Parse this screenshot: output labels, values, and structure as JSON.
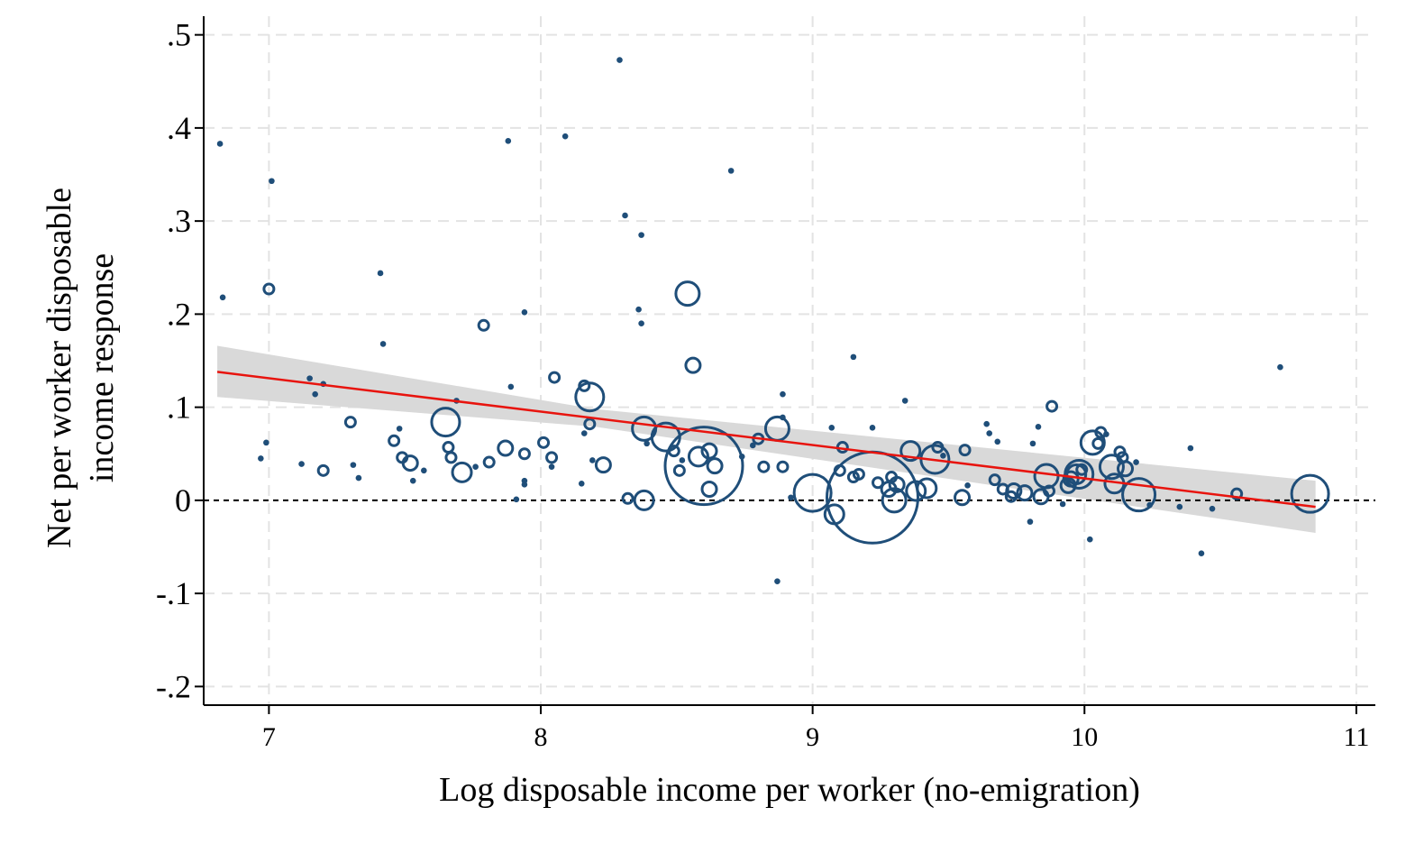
{
  "chart_data": {
    "type": "scatter",
    "title": "",
    "xlabel": "Log disposable income per worker (no-emigration)",
    "ylabel": [
      "Net per worker disposable",
      "income response"
    ],
    "xlim": [
      6.76,
      11.07
    ],
    "ylim": [
      -0.22,
      0.52
    ],
    "xticks": [
      7,
      8,
      9,
      10,
      11
    ],
    "xtick_labels": [
      "7",
      "8",
      "9",
      "10",
      "11"
    ],
    "yticks": [
      -0.2,
      -0.1,
      0,
      0.1,
      0.2,
      0.3,
      0.4,
      0.5
    ],
    "ytick_labels": [
      "-.2",
      "-.1",
      "0",
      ".1",
      ".2",
      ".3",
      ".4",
      ".5"
    ],
    "grid": true,
    "zero_reference_line": 0,
    "fit_line": {
      "x": [
        6.81,
        10.85
      ],
      "y": [
        0.138,
        -0.007
      ],
      "color": "#e8140e"
    },
    "confidence_band": {
      "x": [
        6.81,
        8.2,
        10.85
      ],
      "lower": [
        0.111,
        0.079,
        -0.035
      ],
      "upper": [
        0.166,
        0.098,
        0.021
      ]
    },
    "marker_color": "#1f4e79",
    "points": [
      [
        6.82,
        0.383,
        1
      ],
      [
        6.83,
        0.218,
        1
      ],
      [
        7.01,
        0.343,
        1
      ],
      [
        7.0,
        0.227,
        2
      ],
      [
        6.97,
        0.045,
        1
      ],
      [
        6.99,
        0.062,
        1
      ],
      [
        7.12,
        0.039,
        1
      ],
      [
        7.15,
        0.131,
        1
      ],
      [
        7.17,
        0.114,
        1
      ],
      [
        7.2,
        0.125,
        1
      ],
      [
        7.2,
        0.032,
        2
      ],
      [
        7.3,
        0.084,
        2
      ],
      [
        7.31,
        0.038,
        1
      ],
      [
        7.33,
        0.024,
        1
      ],
      [
        7.41,
        0.244,
        1
      ],
      [
        7.42,
        0.168,
        1
      ],
      [
        7.46,
        0.064,
        2
      ],
      [
        7.48,
        0.077,
        1
      ],
      [
        7.49,
        0.046,
        2
      ],
      [
        7.52,
        0.04,
        3
      ],
      [
        7.53,
        0.021,
        1
      ],
      [
        7.57,
        0.032,
        1
      ],
      [
        7.65,
        0.084,
        6
      ],
      [
        7.66,
        0.057,
        2
      ],
      [
        7.67,
        0.046,
        2
      ],
      [
        7.69,
        0.107,
        1
      ],
      [
        7.71,
        0.03,
        4
      ],
      [
        7.76,
        0.036,
        1
      ],
      [
        7.79,
        0.188,
        2
      ],
      [
        7.81,
        0.041,
        2
      ],
      [
        7.87,
        0.056,
        3
      ],
      [
        7.88,
        0.386,
        1
      ],
      [
        7.89,
        0.122,
        1
      ],
      [
        7.91,
        0.001,
        1
      ],
      [
        7.94,
        0.202,
        1
      ],
      [
        7.94,
        0.05,
        2
      ],
      [
        7.94,
        0.021,
        1
      ],
      [
        7.94,
        0.017,
        1
      ],
      [
        8.01,
        0.062,
        2
      ],
      [
        8.04,
        0.046,
        2
      ],
      [
        8.05,
        0.132,
        2
      ],
      [
        8.04,
        0.036,
        1
      ],
      [
        8.09,
        0.391,
        1
      ],
      [
        8.16,
        0.123,
        2
      ],
      [
        8.16,
        0.072,
        1
      ],
      [
        8.18,
        0.111,
        6
      ],
      [
        8.15,
        0.018,
        1
      ],
      [
        8.18,
        0.082,
        2
      ],
      [
        8.19,
        0.043,
        1
      ],
      [
        8.23,
        0.038,
        3
      ],
      [
        8.29,
        0.473,
        1
      ],
      [
        8.31,
        0.306,
        1
      ],
      [
        8.32,
        0.002,
        2
      ],
      [
        8.37,
        0.285,
        1
      ],
      [
        8.36,
        0.205,
        1
      ],
      [
        8.37,
        0.19,
        1
      ],
      [
        8.38,
        0.077,
        5
      ],
      [
        8.38,
        0.0,
        4
      ],
      [
        8.39,
        0.061,
        1
      ],
      [
        8.46,
        0.068,
        6
      ],
      [
        8.49,
        0.053,
        2
      ],
      [
        8.51,
        0.032,
        2
      ],
      [
        8.52,
        0.043,
        1
      ],
      [
        8.54,
        0.222,
        5
      ],
      [
        8.56,
        0.145,
        3
      ],
      [
        8.58,
        0.047,
        4
      ],
      [
        8.6,
        0.037,
        17
      ],
      [
        8.62,
        0.053,
        3
      ],
      [
        8.62,
        0.012,
        3
      ],
      [
        8.64,
        0.037,
        3
      ],
      [
        8.7,
        0.354,
        1
      ],
      [
        8.74,
        0.047,
        1
      ],
      [
        8.78,
        0.059,
        1
      ],
      [
        8.8,
        0.066,
        2
      ],
      [
        8.82,
        0.036,
        2
      ],
      [
        8.87,
        0.077,
        5
      ],
      [
        8.89,
        0.114,
        1
      ],
      [
        8.89,
        0.089,
        1
      ],
      [
        8.89,
        0.036,
        2
      ],
      [
        8.92,
        0.003,
        1
      ],
      [
        8.87,
        -0.087,
        1
      ],
      [
        9.0,
        0.008,
        8
      ],
      [
        9.07,
        0.078,
        1
      ],
      [
        9.08,
        -0.015,
        4
      ],
      [
        9.1,
        0.032,
        2
      ],
      [
        9.11,
        0.057,
        2
      ],
      [
        9.15,
        0.154,
        1
      ],
      [
        9.15,
        0.025,
        2
      ],
      [
        9.17,
        0.028,
        2
      ],
      [
        9.22,
        0.003,
        20
      ],
      [
        9.22,
        0.078,
        1
      ],
      [
        9.24,
        0.019,
        2
      ],
      [
        9.28,
        0.012,
        3
      ],
      [
        9.29,
        0.025,
        2
      ],
      [
        9.3,
        0.0,
        5
      ],
      [
        9.31,
        0.017,
        3
      ],
      [
        9.34,
        0.107,
        1
      ],
      [
        9.36,
        0.053,
        4
      ],
      [
        9.38,
        0.01,
        4
      ],
      [
        9.42,
        0.013,
        4
      ],
      [
        9.45,
        0.044,
        6
      ],
      [
        9.46,
        0.057,
        2
      ],
      [
        9.48,
        0.048,
        1
      ],
      [
        9.55,
        0.003,
        3
      ],
      [
        9.56,
        0.054,
        2
      ],
      [
        9.57,
        0.016,
        1
      ],
      [
        9.64,
        0.082,
        1
      ],
      [
        9.65,
        0.072,
        1
      ],
      [
        9.67,
        0.022,
        2
      ],
      [
        9.68,
        0.063,
        1
      ],
      [
        9.7,
        0.012,
        2
      ],
      [
        9.73,
        0.004,
        2
      ],
      [
        9.74,
        0.01,
        3
      ],
      [
        9.78,
        0.008,
        3
      ],
      [
        9.8,
        -0.023,
        1
      ],
      [
        9.81,
        0.061,
        1
      ],
      [
        9.83,
        0.079,
        1
      ],
      [
        9.84,
        0.004,
        3
      ],
      [
        9.86,
        0.026,
        5
      ],
      [
        9.87,
        0.01,
        2
      ],
      [
        9.88,
        0.101,
        2
      ],
      [
        9.92,
        -0.004,
        1
      ],
      [
        9.94,
        0.016,
        3
      ],
      [
        9.95,
        0.023,
        3
      ],
      [
        9.97,
        0.028,
        4
      ],
      [
        9.98,
        0.028,
        6
      ],
      [
        9.99,
        0.033,
        2
      ],
      [
        10.02,
        -0.042,
        1
      ],
      [
        10.03,
        0.062,
        5
      ],
      [
        10.05,
        0.061,
        2
      ],
      [
        10.06,
        0.073,
        2
      ],
      [
        10.08,
        0.071,
        1
      ],
      [
        10.1,
        0.036,
        5
      ],
      [
        10.11,
        0.018,
        4
      ],
      [
        10.13,
        0.052,
        2
      ],
      [
        10.14,
        0.046,
        2
      ],
      [
        10.15,
        0.034,
        3
      ],
      [
        10.19,
        0.041,
        1
      ],
      [
        10.2,
        0.006,
        7
      ],
      [
        10.24,
        -0.005,
        1
      ],
      [
        10.35,
        -0.007,
        1
      ],
      [
        10.39,
        0.056,
        1
      ],
      [
        10.43,
        -0.057,
        1
      ],
      [
        10.47,
        -0.009,
        1
      ],
      [
        10.56,
        0.007,
        2
      ],
      [
        10.72,
        0.143,
        1
      ],
      [
        10.83,
        0.007,
        8
      ]
    ]
  }
}
